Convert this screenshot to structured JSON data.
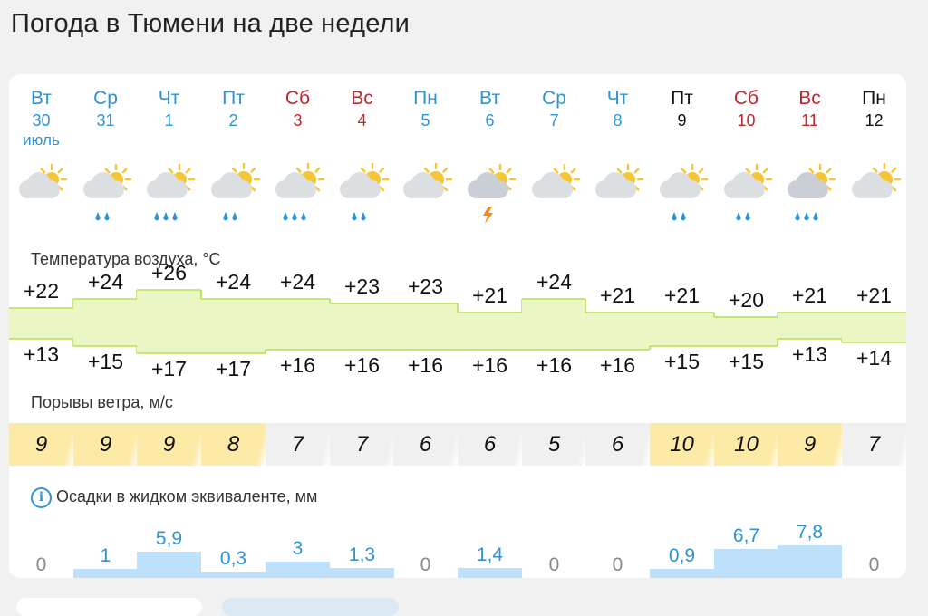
{
  "title": "Погода в Тюмени на две недели",
  "days": [
    {
      "name": "Вт",
      "date": "30",
      "month": "июль",
      "color": "#2e93d1",
      "icon": "partly-cloudy-icon",
      "precip": "none"
    },
    {
      "name": "Ср",
      "date": "31",
      "month": "",
      "color": "#2e93d1",
      "icon": "cloud-sun-rain-icon",
      "precip": "rain"
    },
    {
      "name": "Чт",
      "date": "1",
      "month": "",
      "color": "#2e93d1",
      "icon": "cloud-sun-heavy-rain-icon",
      "precip": "heavy"
    },
    {
      "name": "Пт",
      "date": "2",
      "month": "",
      "color": "#2e93d1",
      "icon": "sun-cloud-rain-icon",
      "precip": "rain"
    },
    {
      "name": "Сб",
      "date": "3",
      "month": "",
      "color": "#c0272d",
      "icon": "sun-cloud-heavy-rain-icon",
      "precip": "heavy"
    },
    {
      "name": "Вс",
      "date": "4",
      "month": "",
      "color": "#c0272d",
      "icon": "sun-cloud-rain-icon",
      "precip": "rain"
    },
    {
      "name": "Пн",
      "date": "5",
      "month": "",
      "color": "#2e93d1",
      "icon": "sun-cloud-icon",
      "precip": "none"
    },
    {
      "name": "Вт",
      "date": "6",
      "month": "",
      "color": "#2e93d1",
      "icon": "thunderstorm-icon",
      "precip": "thunder"
    },
    {
      "name": "Ср",
      "date": "7",
      "month": "",
      "color": "#2e93d1",
      "icon": "partly-cloudy-icon",
      "precip": "none"
    },
    {
      "name": "Чт",
      "date": "8",
      "month": "",
      "color": "#2e93d1",
      "icon": "partly-cloudy-icon",
      "precip": "none"
    },
    {
      "name": "Пт",
      "date": "9",
      "month": "",
      "color": "#111111",
      "icon": "cloud-sun-rain-icon",
      "precip": "rain"
    },
    {
      "name": "Сб",
      "date": "10",
      "month": "",
      "color": "#c0272d",
      "icon": "cloud-sun-rain-icon",
      "precip": "rain"
    },
    {
      "name": "Вс",
      "date": "11",
      "month": "",
      "color": "#c0272d",
      "icon": "cloud-heavy-rain-icon",
      "precip": "heavy"
    },
    {
      "name": "Пн",
      "date": "12",
      "month": "",
      "color": "#111111",
      "icon": "sun-cloud-icon",
      "precip": "none"
    }
  ],
  "temperature": {
    "label": "Температура воздуха, °C",
    "max": [
      "+22",
      "+24",
      "+26",
      "+24",
      "+24",
      "+23",
      "+23",
      "+21",
      "+24",
      "+21",
      "+21",
      "+20",
      "+21",
      "+21"
    ],
    "min": [
      "+13",
      "+15",
      "+17",
      "+17",
      "+16",
      "+16",
      "+16",
      "+16",
      "+16",
      "+16",
      "+15",
      "+15",
      "+13",
      "+14"
    ],
    "max_values": [
      22,
      24,
      26,
      24,
      24,
      23,
      23,
      21,
      24,
      21,
      21,
      20,
      21,
      21
    ],
    "min_values": [
      13,
      15,
      17,
      17,
      16,
      16,
      16,
      16,
      16,
      16,
      15,
      15,
      13,
      14
    ],
    "band_color": "#eaf7c4",
    "line_color": "#b8de57"
  },
  "wind": {
    "label": "Порывы ветра, м/с",
    "values": [
      "9",
      "9",
      "9",
      "8",
      "7",
      "7",
      "6",
      "6",
      "5",
      "6",
      "10",
      "10",
      "9",
      "7"
    ],
    "high_color": "#fdeaa6",
    "low_color": "#f0f0f0"
  },
  "precipitation": {
    "label": "Осадки в жидком эквиваленте, мм",
    "values": [
      "0",
      "1",
      "5,9",
      "0,3",
      "3",
      "1,3",
      "0",
      "1,4",
      "0",
      "0",
      "0,9",
      "6,7",
      "7,8",
      "0"
    ],
    "amounts": [
      0,
      1,
      5.9,
      0.3,
      3,
      1.3,
      0,
      1.4,
      0,
      0,
      0.9,
      6.7,
      7.8,
      0
    ],
    "info_icon": "info-icon",
    "bar_color": "#bde0fb",
    "value_color": "#2e93d1",
    "zero_color": "#888888"
  }
}
